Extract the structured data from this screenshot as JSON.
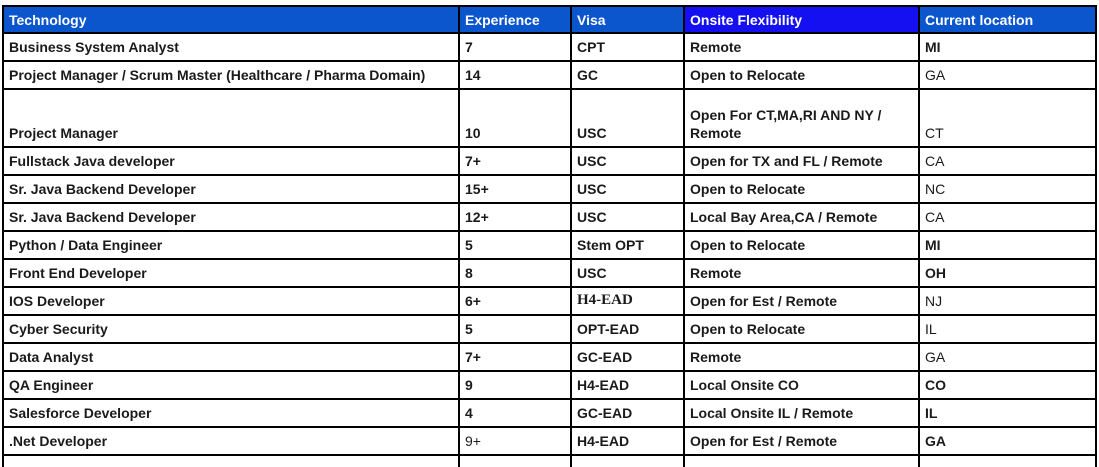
{
  "colors": {
    "header_bg": "#0b56cd",
    "onsite_header_bg": "#1410f2",
    "header_text": "#ffffff",
    "cell_text": "#1a1a1a",
    "border": "#000000",
    "background": "#ffffff"
  },
  "table": {
    "columns": [
      {
        "key": "technology",
        "label": "Technology"
      },
      {
        "key": "experience",
        "label": "Experience"
      },
      {
        "key": "visa",
        "label": "Visa"
      },
      {
        "key": "onsite",
        "label": "Onsite Flexibility"
      },
      {
        "key": "location",
        "label": "Current location"
      }
    ],
    "rows": [
      {
        "technology": "Business System Analyst",
        "experience": "7",
        "visa": "CPT",
        "onsite": "Remote",
        "location": "MI"
      },
      {
        "technology": "Project Manager / Scrum Master (Healthcare / Pharma Domain)",
        "experience": "14",
        "visa": "GC",
        "onsite": "Open to Relocate",
        "location": "GA",
        "location_style": "regular"
      },
      {
        "technology": "Project Manager",
        "experience": "10",
        "visa": "USC",
        "onsite": "Open For CT,MA,RI AND NY / Remote",
        "location": "CT",
        "tall": true,
        "location_style": "regular"
      },
      {
        "technology": "Fullstack Java developer",
        "experience": "7+",
        "visa": "USC",
        "onsite": "Open for TX and FL / Remote",
        "location": "CA",
        "location_style": "regular"
      },
      {
        "technology": "Sr. Java Backend Developer",
        "experience": "15+",
        "visa": "USC",
        "onsite": "Open to Relocate",
        "location": "NC",
        "location_style": "regular"
      },
      {
        "technology": "Sr. Java Backend Developer",
        "experience": "12+",
        "visa": "USC",
        "onsite": "Local Bay Area,CA / Remote",
        "location": "CA",
        "location_style": "regular"
      },
      {
        "technology": "Python / Data Engineer",
        "experience": "5",
        "visa": "Stem OPT",
        "onsite": "Open to Relocate",
        "location": "MI"
      },
      {
        "technology": "Front End Developer",
        "experience": "8",
        "visa": "USC",
        "onsite": "Remote",
        "location": "OH"
      },
      {
        "technology": "IOS Developer",
        "experience": "6+",
        "visa": "H4-EAD",
        "onsite": "Open for Est / Remote",
        "location": "NJ",
        "visa_style": "serif",
        "location_style": "regular"
      },
      {
        "technology": "Cyber Security",
        "experience": "5",
        "visa": "OPT-EAD",
        "onsite": "Open to Relocate",
        "location": "IL",
        "location_style": "regular"
      },
      {
        "technology": "Data Analyst",
        "experience": "7+",
        "visa": "GC-EAD",
        "onsite": "Remote",
        "location": "GA",
        "location_style": "regular"
      },
      {
        "technology": "QA Engineer",
        "experience": "9",
        "visa": "H4-EAD",
        "onsite": "Local Onsite CO",
        "location": "CO"
      },
      {
        "technology": "Salesforce Developer",
        "experience": "4",
        "visa": "GC-EAD",
        "onsite": "Local Onsite IL / Remote",
        "location": "IL"
      },
      {
        "technology": ".Net Developer",
        "experience": "9+",
        "visa": "H4-EAD",
        "onsite": "Open for Est / Remote",
        "location": "GA",
        "experience_style": "regular"
      }
    ]
  }
}
